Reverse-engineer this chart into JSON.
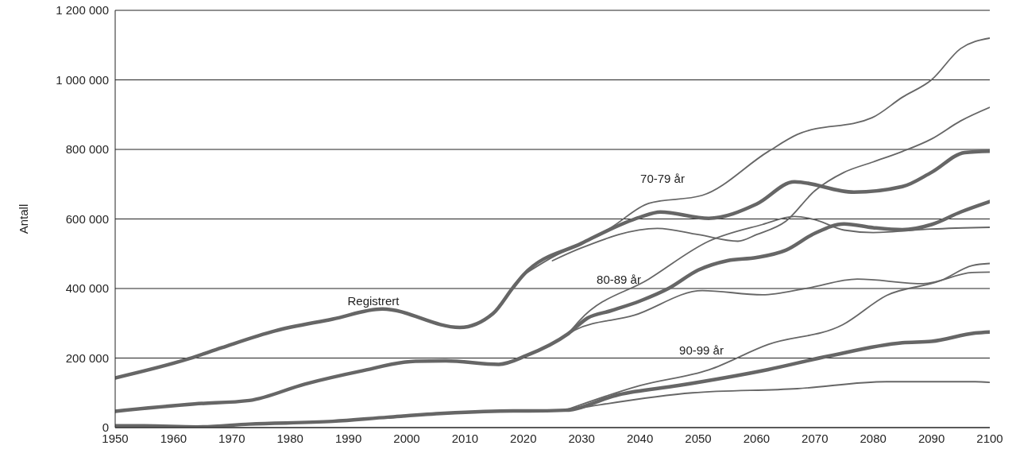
{
  "chart_data": {
    "type": "line",
    "ylabel": "Antall",
    "xlim": [
      1950,
      2100
    ],
    "xticks": [
      1950,
      1960,
      1970,
      1980,
      1990,
      2000,
      2010,
      2020,
      2030,
      2040,
      2050,
      2060,
      2070,
      2080,
      2090,
      2100
    ],
    "ylim": [
      0,
      1200000
    ],
    "yticks": [
      {
        "value": 0,
        "label": "0"
      },
      {
        "value": 200000,
        "label": "200 000"
      },
      {
        "value": 400000,
        "label": "400 000"
      },
      {
        "value": 600000,
        "label": "600 000"
      },
      {
        "value": 800000,
        "label": "800 000"
      },
      {
        "value": 1000000,
        "label": "1 000 000"
      },
      {
        "value": 1200000,
        "label": "1 200 000"
      }
    ],
    "grid": "y",
    "legend": false,
    "marker": "none",
    "line_style": "solid",
    "series": [
      {
        "color": "#666666",
        "x": [
          1950,
          1962.6,
          1968.3,
          1977.4,
          1987.3,
          1995.8,
          2009.1,
          2014.8,
          2018.2,
          2020,
          2030,
          2040,
          2043.5,
          2051.8,
          2060,
          2066.5,
          2076.7,
          2085,
          2090,
          2095.7,
          2100
        ],
        "values": [
          143000,
          198000,
          230000,
          278000,
          312000,
          341000,
          288000,
          328000,
          402000,
          439000,
          530000,
          605000,
          620000,
          602000,
          643000,
          707000,
          677000,
          693000,
          734000,
          791000,
          795000
        ]
      },
      {
        "color": "#666666",
        "x": [
          2020,
          2025,
          2030,
          2035,
          2041.5,
          2050.7,
          2062,
          2067,
          2079.8,
          2085,
          2090,
          2095,
          2100
        ],
        "values": [
          439000,
          490000,
          530000,
          575000,
          645000,
          668000,
          794000,
          843000,
          891000,
          950000,
          1000000,
          1090000,
          1120000
        ]
      },
      {
        "color": "#666666",
        "x": [
          2025,
          2029.7,
          2043,
          2050,
          2056.8,
          2060,
          2065,
          2070,
          2075,
          2080,
          2085,
          2090,
          2095,
          2100
        ],
        "values": [
          480000,
          515000,
          573000,
          555000,
          536000,
          555000,
          593000,
          681000,
          734000,
          764000,
          794000,
          830000,
          882000,
          921000
        ]
      },
      {
        "color": "#666666",
        "x": [
          1950,
          1963.6,
          1973,
          1982.5,
          1992,
          2001.5,
          2006.7,
          2015.8,
          2020.5,
          2027.7,
          2031,
          2035,
          2040,
          2045,
          2050,
          2055,
          2060,
          2065,
          2070,
          2075,
          2080,
          2085,
          2090,
          2095,
          2100
        ],
        "values": [
          47000,
          68000,
          78000,
          125000,
          162000,
          191000,
          192000,
          182000,
          207000,
          270000,
          315000,
          336000,
          364000,
          401000,
          453000,
          480000,
          489000,
          510000,
          559000,
          586000,
          575000,
          569000,
          584000,
          620000,
          650000
        ]
      },
      {
        "color": "#666666",
        "x": [
          2027.7,
          2029.7,
          2041.5,
          2051.8,
          2061,
          2066.5,
          2070,
          2075,
          2080,
          2090,
          2100
        ],
        "values": [
          270000,
          309000,
          427000,
          536000,
          584000,
          607000,
          598000,
          568000,
          561000,
          571000,
          576000
        ]
      },
      {
        "color": "#666666",
        "x": [
          2027.7,
          2028.8,
          2039,
          2050.7,
          2061,
          2068.7,
          2077.3,
          2088.6,
          2097,
          2100
        ],
        "values": [
          270000,
          280000,
          323000,
          394000,
          382000,
          401000,
          427000,
          414000,
          446000,
          447000
        ]
      },
      {
        "color": "#666666",
        "x": [
          1950,
          1955,
          1964,
          1973,
          1987.3,
          1996.8,
          2006.4,
          2018.2,
          2021,
          2027.2,
          2036.4,
          2046.6,
          2062,
          2072.2,
          2085,
          2090,
          2097.5,
          2100
        ],
        "values": [
          5000,
          5000,
          2000,
          10000,
          18000,
          30000,
          41000,
          48000,
          48000,
          50000,
          95000,
          121000,
          167000,
          205000,
          244000,
          248000,
          272000,
          275000
        ]
      },
      {
        "color": "#666666",
        "x": [
          2027.2,
          2040,
          2051.8,
          2062,
          2074.8,
          2082.3,
          2091.6,
          2097,
          2100
        ],
        "values": [
          50000,
          121000,
          166000,
          239000,
          296000,
          380000,
          423000,
          466000,
          472000
        ]
      },
      {
        "color": "#666666",
        "x": [
          2027.2,
          2031,
          2049,
          2067,
          2082.3,
          2097.5,
          2100
        ],
        "values": [
          50000,
          60000,
          100000,
          112000,
          132000,
          132000,
          130000
        ]
      }
    ],
    "annotations": [
      "Registrert",
      "70-79 år",
      "80-89 år",
      "90-99 år"
    ]
  }
}
